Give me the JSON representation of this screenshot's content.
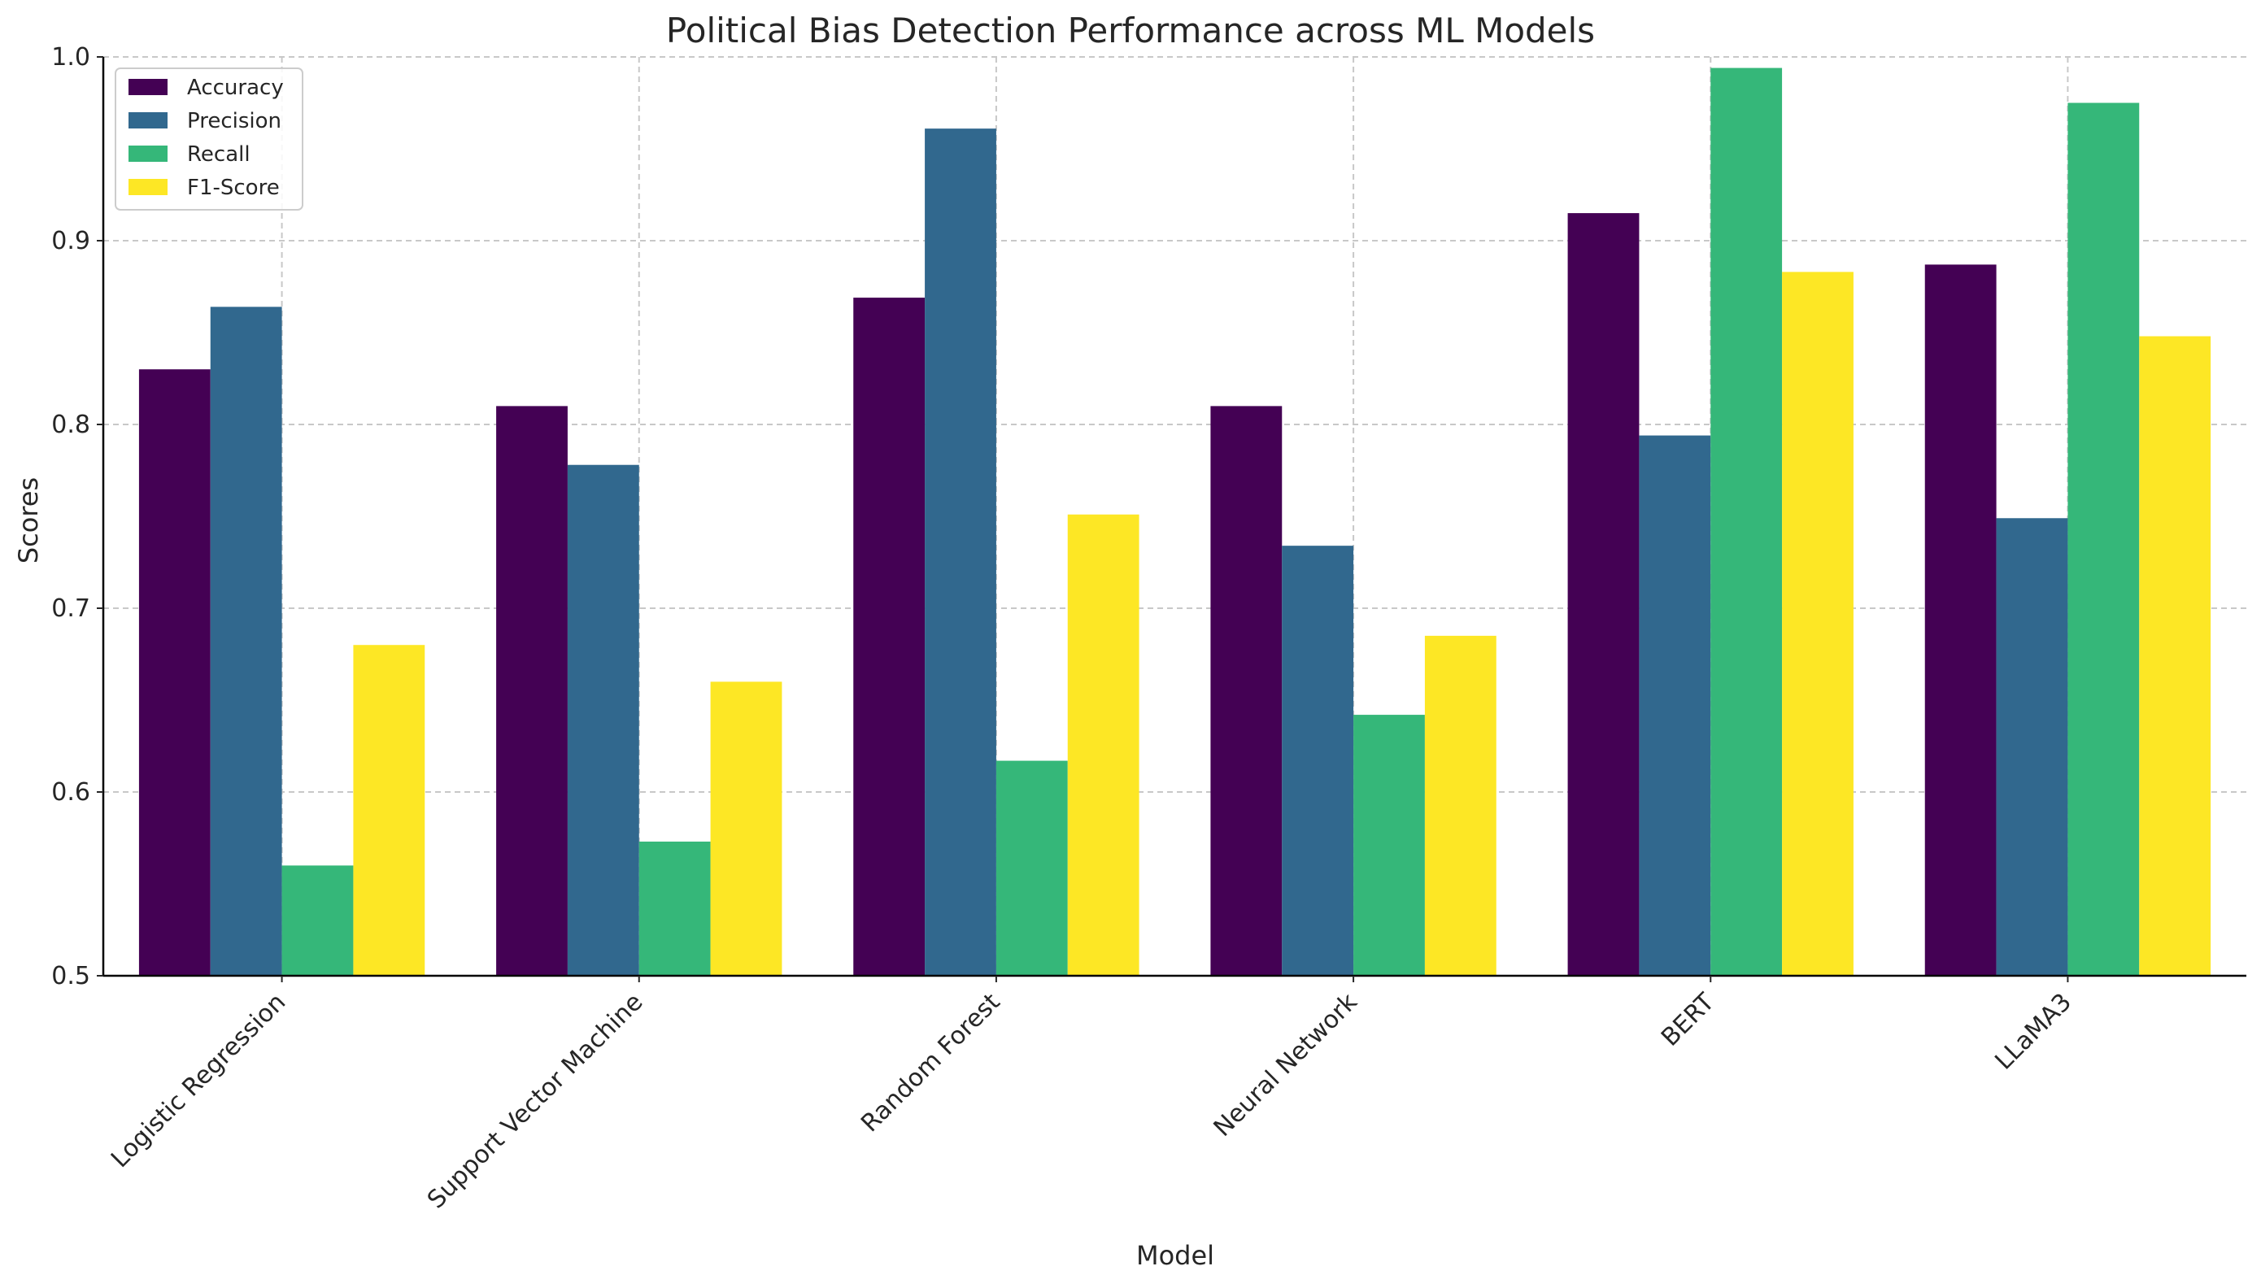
{
  "chart_data": {
    "type": "bar",
    "title": "Political Bias Detection Performance across ML Models",
    "xlabel": "Model",
    "ylabel": "Scores",
    "ylim": [
      0.5,
      1.0
    ],
    "yticks": [
      "0.5",
      "0.6",
      "0.7",
      "0.8",
      "0.9",
      "1.0"
    ],
    "grid": true,
    "legend_position": "top-left",
    "categories": [
      "Logistic Regression",
      "Support Vector Machine",
      "Random Forest",
      "Neural Network",
      "BERT",
      "LLaMA3"
    ],
    "series": [
      {
        "name": "Accuracy",
        "color": "#440154",
        "values": [
          0.83,
          0.81,
          0.869,
          0.81,
          0.915,
          0.887
        ]
      },
      {
        "name": "Precision",
        "color": "#31688e",
        "values": [
          0.864,
          0.778,
          0.961,
          0.734,
          0.794,
          0.749
        ]
      },
      {
        "name": "Recall",
        "color": "#35b779",
        "values": [
          0.56,
          0.573,
          0.617,
          0.642,
          0.994,
          0.975
        ]
      },
      {
        "name": "F1-Score",
        "color": "#fde725",
        "values": [
          0.68,
          0.66,
          0.751,
          0.685,
          0.883,
          0.848
        ]
      }
    ]
  }
}
